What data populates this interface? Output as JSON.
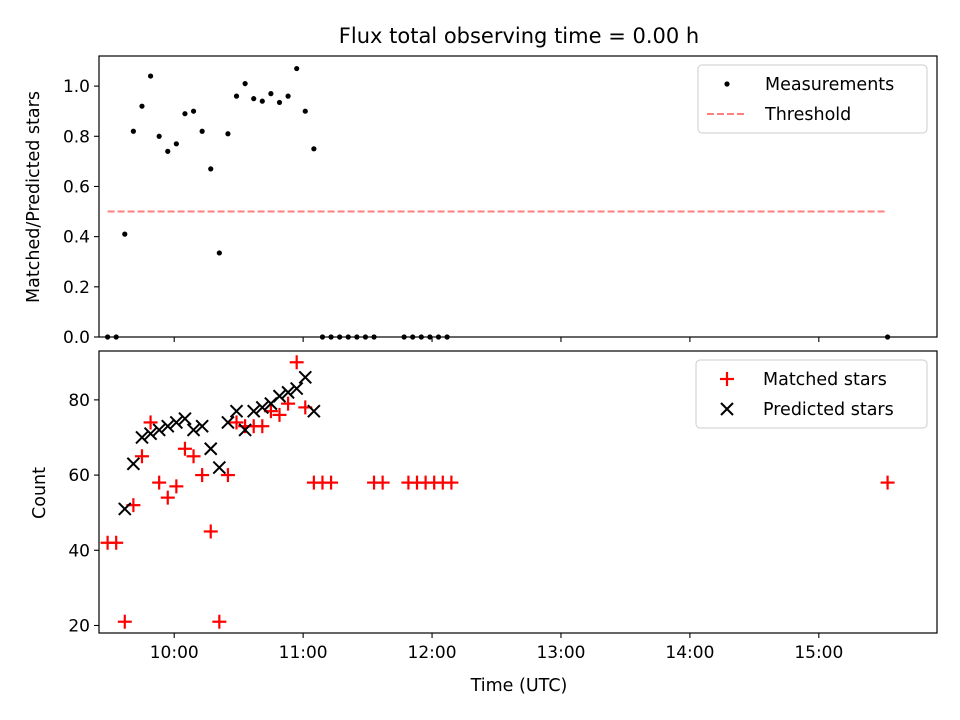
{
  "title": "Flux total observing time = 0.00 h",
  "xlabel": "Time (UTC)",
  "colors": {
    "measurement": "#000000",
    "threshold": "#ff7f7f",
    "matched": "#ff0000",
    "predicted": "#000000"
  },
  "x_ticks": [
    "10:00",
    "11:00",
    "12:00",
    "13:00",
    "14:00",
    "15:00"
  ],
  "chart_data": [
    {
      "type": "scatter",
      "ylabel": "Matched/Predicted stars",
      "xlim": [
        "09:25",
        "15:55"
      ],
      "ylim": [
        0,
        1.12
      ],
      "yticks": [
        "0.0",
        "0.2",
        "0.4",
        "0.6",
        "0.8",
        "1.0"
      ],
      "legend_position": "top-right",
      "series": [
        {
          "name": "Measurements",
          "marker": "dot",
          "x": [
            "09:29",
            "09:33",
            "09:37",
            "09:41",
            "09:45",
            "09:49",
            "09:53",
            "09:57",
            "10:01",
            "10:05",
            "10:09",
            "10:13",
            "10:17",
            "10:21",
            "10:25",
            "10:29",
            "10:33",
            "10:37",
            "10:41",
            "10:45",
            "10:49",
            "10:53",
            "10:57",
            "11:01",
            "11:05",
            "11:09",
            "11:13",
            "11:17",
            "11:21",
            "11:25",
            "11:29",
            "11:33",
            "11:47",
            "11:51",
            "11:55",
            "11:59",
            "12:03",
            "12:07",
            "15:32"
          ],
          "y": [
            0.0,
            0.0,
            0.41,
            0.82,
            0.92,
            1.04,
            0.8,
            0.74,
            0.77,
            0.89,
            0.9,
            0.82,
            0.67,
            0.335,
            0.81,
            0.96,
            1.01,
            0.95,
            0.94,
            0.97,
            0.935,
            0.96,
            1.07,
            0.9,
            0.75,
            0.0,
            0.0,
            0.0,
            0.0,
            0.0,
            0.0,
            0.0,
            0.0,
            0.0,
            0.0,
            0.0,
            0.0,
            0.0,
            0.0
          ]
        },
        {
          "name": "Threshold",
          "marker": "dashed-line",
          "x": [
            "09:29",
            "15:32"
          ],
          "y": [
            0.5,
            0.5
          ]
        }
      ]
    },
    {
      "type": "scatter",
      "ylabel": "Count",
      "xlim": [
        "09:25",
        "15:55"
      ],
      "ylim": [
        18,
        93
      ],
      "yticks": [
        "20",
        "40",
        "60",
        "80"
      ],
      "legend_position": "top-right",
      "series": [
        {
          "name": "Matched stars",
          "marker": "plus",
          "x": [
            "09:29",
            "09:33",
            "09:37",
            "09:41",
            "09:45",
            "09:49",
            "09:53",
            "09:57",
            "10:01",
            "10:05",
            "10:09",
            "10:13",
            "10:17",
            "10:21",
            "10:25",
            "10:29",
            "10:33",
            "10:37",
            "10:41",
            "10:45",
            "10:49",
            "10:53",
            "10:57",
            "11:01",
            "11:05",
            "11:09",
            "11:13",
            "11:33",
            "11:37",
            "11:49",
            "11:53",
            "11:57",
            "12:01",
            "12:05",
            "12:09",
            "15:32"
          ],
          "y": [
            42,
            42,
            21,
            52,
            65,
            74,
            58,
            54,
            57,
            67,
            65,
            60,
            45,
            21,
            60,
            74,
            73,
            73,
            73,
            77,
            76,
            79,
            90,
            78,
            58,
            58,
            58,
            58,
            58,
            58,
            58,
            58,
            58,
            58,
            58,
            58
          ]
        },
        {
          "name": "Predicted stars",
          "marker": "x",
          "x": [
            "09:37",
            "09:41",
            "09:45",
            "09:49",
            "09:53",
            "09:57",
            "10:01",
            "10:05",
            "10:09",
            "10:13",
            "10:17",
            "10:21",
            "10:25",
            "10:29",
            "10:33",
            "10:37",
            "10:41",
            "10:45",
            "10:49",
            "10:53",
            "10:57",
            "11:01",
            "11:05"
          ],
          "y": [
            51,
            63,
            70,
            71,
            72,
            73,
            74,
            75,
            72,
            73,
            67,
            62,
            74,
            77,
            72,
            77,
            78,
            79,
            81,
            82,
            83,
            86,
            77
          ]
        }
      ]
    }
  ]
}
